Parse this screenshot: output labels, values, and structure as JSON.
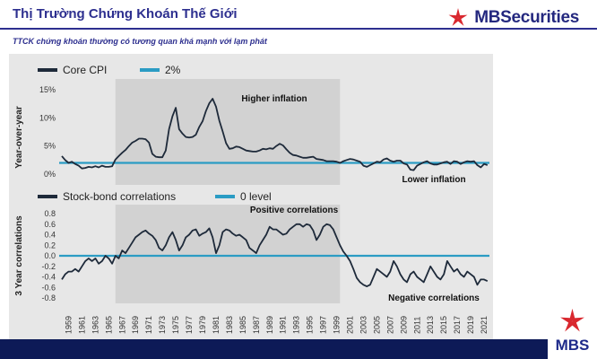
{
  "header": {
    "title": "Thị Trường Chứng Khoán Thế Giới",
    "subtitle": "TTCK chứng khoán thường có tương quan khá mạnh với lạm phát",
    "brand": "MBSecurities",
    "badge_text": "MBS"
  },
  "colors": {
    "title": "#2d2f8f",
    "brand_red": "#d9282f",
    "series_dark": "#1e2a3a",
    "reference_line": "#2b9cc4",
    "plot_bg": "#e7e7e7",
    "shade": "#d0d0d0"
  },
  "chart_data": [
    {
      "type": "line",
      "ylabel": "Year-over-year",
      "ylim": [
        0,
        15
      ],
      "yticks": [
        "0%",
        "5%",
        "10%",
        "15%"
      ],
      "legend": [
        {
          "name": "Core CPI"
        },
        {
          "name": "2%"
        }
      ],
      "reference": {
        "name": "2%",
        "value": 2
      },
      "annotations": [
        "Higher inflation",
        "Lower inflation"
      ],
      "shaded_periods": [
        [
          1966,
          1999.5
        ]
      ],
      "series": [
        {
          "name": "Core CPI",
          "x": [
            1958,
            1958.5,
            1959,
            1959.5,
            1960,
            1960.5,
            1961,
            1961.5,
            1962,
            1962.5,
            1963,
            1963.5,
            1964,
            1964.5,
            1965,
            1965.5,
            1966,
            1966.5,
            1967,
            1967.5,
            1968,
            1968.5,
            1969,
            1969.5,
            1970,
            1970.5,
            1971,
            1971.5,
            1972,
            1972.5,
            1973,
            1973.5,
            1974,
            1974.5,
            1975,
            1975.5,
            1976,
            1976.5,
            1977,
            1977.5,
            1978,
            1978.5,
            1979,
            1979.5,
            1980,
            1980.5,
            1981,
            1981.5,
            1982,
            1982.5,
            1983,
            1983.5,
            1984,
            1984.5,
            1985,
            1985.5,
            1986,
            1986.5,
            1987,
            1987.5,
            1988,
            1988.5,
            1989,
            1989.5,
            1990,
            1990.5,
            1991,
            1991.5,
            1992,
            1992.5,
            1993,
            1993.5,
            1994,
            1994.5,
            1995,
            1995.5,
            1996,
            1996.5,
            1997,
            1997.5,
            1998,
            1998.5,
            1999,
            1999.5,
            2000,
            2000.5,
            2001,
            2001.5,
            2002,
            2002.5,
            2003,
            2003.5,
            2004,
            2004.5,
            2005,
            2005.5,
            2006,
            2006.5,
            2007,
            2007.5,
            2008,
            2008.5,
            2009,
            2009.5,
            2010,
            2010.5,
            2011,
            2011.5,
            2012,
            2012.5,
            2013,
            2013.5,
            2014,
            2014.5,
            2015,
            2015.5,
            2016,
            2016.5,
            2017,
            2017.5,
            2018,
            2018.5,
            2019,
            2019.5,
            2020,
            2020.5,
            2021,
            2021.5
          ],
          "values": [
            3.2,
            2.5,
            2.0,
            2.2,
            1.8,
            1.5,
            1.0,
            1.1,
            1.3,
            1.2,
            1.4,
            1.2,
            1.5,
            1.3,
            1.3,
            1.4,
            2.6,
            3.2,
            3.8,
            4.3,
            5.0,
            5.6,
            5.9,
            6.3,
            6.3,
            6.2,
            5.6,
            3.6,
            3.1,
            3.0,
            3.0,
            4.2,
            8.0,
            10.3,
            11.8,
            8.0,
            7.2,
            6.6,
            6.5,
            6.6,
            7.0,
            8.4,
            9.4,
            11.2,
            12.6,
            13.4,
            12.0,
            9.5,
            7.6,
            5.5,
            4.5,
            4.6,
            4.9,
            4.8,
            4.5,
            4.2,
            4.1,
            4.0,
            4.0,
            4.2,
            4.5,
            4.4,
            4.6,
            4.5,
            5.0,
            5.4,
            5.1,
            4.4,
            3.8,
            3.4,
            3.3,
            3.1,
            2.9,
            2.9,
            3.0,
            3.1,
            2.7,
            2.6,
            2.5,
            2.3,
            2.3,
            2.3,
            2.2,
            2.0,
            2.3,
            2.5,
            2.7,
            2.6,
            2.4,
            2.2,
            1.5,
            1.3,
            1.6,
            1.9,
            2.2,
            2.1,
            2.6,
            2.8,
            2.4,
            2.2,
            2.4,
            2.4,
            1.9,
            1.7,
            0.8,
            0.7,
            1.5,
            1.8,
            2.1,
            2.3,
            1.9,
            1.7,
            1.7,
            1.9,
            2.1,
            2.2,
            1.8,
            2.3,
            2.2,
            1.8,
            2.1,
            2.3,
            2.2,
            2.3,
            1.6,
            1.2,
            1.8,
            1.6
          ]
        }
      ]
    },
    {
      "type": "line",
      "ylabel": "3 Year correlations",
      "ylim": [
        -0.8,
        0.8
      ],
      "yticks": [
        "0.8",
        "0.6",
        "0.4",
        "0.2",
        "0.0",
        "-0.2",
        "-0.4",
        "-0.6",
        "-0.8"
      ],
      "legend": [
        {
          "name": "Stock-bond correlations"
        },
        {
          "name": "0 level"
        }
      ],
      "reference": {
        "name": "0 level",
        "value": 0
      },
      "annotations": [
        "Positive correlations",
        "Negative correlations"
      ],
      "shaded_periods": [
        [
          1966,
          1999.5
        ]
      ],
      "categories": [
        "1959",
        "1961",
        "1963",
        "1965",
        "1967",
        "1969",
        "1971",
        "1973",
        "1975",
        "1977",
        "1979",
        "1981",
        "1983",
        "1985",
        "1987",
        "1989",
        "1991",
        "1993",
        "1995",
        "1997",
        "1999",
        "2001",
        "2003",
        "2005",
        "2007",
        "2009",
        "2011",
        "2013",
        "2015",
        "2017",
        "2019",
        "2021"
      ],
      "series": [
        {
          "name": "Stock-bond correlations",
          "x": [
            1958,
            1958.5,
            1959,
            1959.5,
            1960,
            1960.5,
            1961,
            1961.5,
            1962,
            1962.5,
            1963,
            1963.5,
            1964,
            1964.5,
            1965,
            1965.5,
            1966,
            1966.5,
            1967,
            1967.5,
            1968,
            1968.5,
            1969,
            1969.5,
            1970,
            1970.5,
            1971,
            1971.5,
            1972,
            1972.5,
            1973,
            1973.5,
            1974,
            1974.5,
            1975,
            1975.5,
            1976,
            1976.5,
            1977,
            1977.5,
            1978,
            1978.5,
            1979,
            1979.5,
            1980,
            1980.5,
            1981,
            1981.5,
            1982,
            1982.5,
            1983,
            1983.5,
            1984,
            1984.5,
            1985,
            1985.5,
            1986,
            1986.5,
            1987,
            1987.5,
            1988,
            1988.5,
            1989,
            1989.5,
            1990,
            1990.5,
            1991,
            1991.5,
            1992,
            1992.5,
            1993,
            1993.5,
            1994,
            1994.5,
            1995,
            1995.5,
            1996,
            1996.5,
            1997,
            1997.5,
            1998,
            1998.5,
            1999,
            1999.5,
            2000,
            2000.5,
            2001,
            2001.5,
            2002,
            2002.5,
            2003,
            2003.5,
            2004,
            2004.5,
            2005,
            2005.5,
            2006,
            2006.5,
            2007,
            2007.5,
            2008,
            2008.5,
            2009,
            2009.5,
            2010,
            2010.5,
            2011,
            2011.5,
            2012,
            2012.5,
            2013,
            2013.5,
            2014,
            2014.5,
            2015,
            2015.5,
            2016,
            2016.5,
            2017,
            2017.5,
            2018,
            2018.5,
            2019,
            2019.5,
            2020,
            2020.5,
            2021,
            2021.5
          ],
          "values": [
            -0.45,
            -0.35,
            -0.3,
            -0.3,
            -0.25,
            -0.3,
            -0.2,
            -0.1,
            -0.05,
            -0.1,
            -0.05,
            -0.15,
            -0.1,
            0.0,
            -0.05,
            -0.15,
            0.0,
            -0.05,
            0.1,
            0.05,
            0.15,
            0.25,
            0.35,
            0.4,
            0.45,
            0.48,
            0.42,
            0.38,
            0.3,
            0.15,
            0.1,
            0.2,
            0.35,
            0.45,
            0.3,
            0.1,
            0.2,
            0.35,
            0.4,
            0.48,
            0.5,
            0.38,
            0.42,
            0.45,
            0.52,
            0.35,
            0.05,
            0.2,
            0.45,
            0.5,
            0.48,
            0.42,
            0.38,
            0.4,
            0.35,
            0.3,
            0.15,
            0.1,
            0.05,
            0.2,
            0.3,
            0.4,
            0.55,
            0.5,
            0.5,
            0.45,
            0.4,
            0.42,
            0.5,
            0.55,
            0.6,
            0.6,
            0.55,
            0.6,
            0.58,
            0.48,
            0.3,
            0.4,
            0.55,
            0.6,
            0.58,
            0.5,
            0.35,
            0.2,
            0.08,
            0.0,
            -0.1,
            -0.25,
            -0.42,
            -0.5,
            -0.55,
            -0.58,
            -0.55,
            -0.4,
            -0.25,
            -0.3,
            -0.35,
            -0.4,
            -0.3,
            -0.1,
            -0.2,
            -0.35,
            -0.45,
            -0.5,
            -0.35,
            -0.3,
            -0.4,
            -0.45,
            -0.5,
            -0.35,
            -0.2,
            -0.3,
            -0.4,
            -0.45,
            -0.35,
            -0.1,
            -0.2,
            -0.3,
            -0.25,
            -0.35,
            -0.4,
            -0.3,
            -0.35,
            -0.4,
            -0.55,
            -0.45,
            -0.45,
            -0.48
          ]
        }
      ]
    }
  ]
}
